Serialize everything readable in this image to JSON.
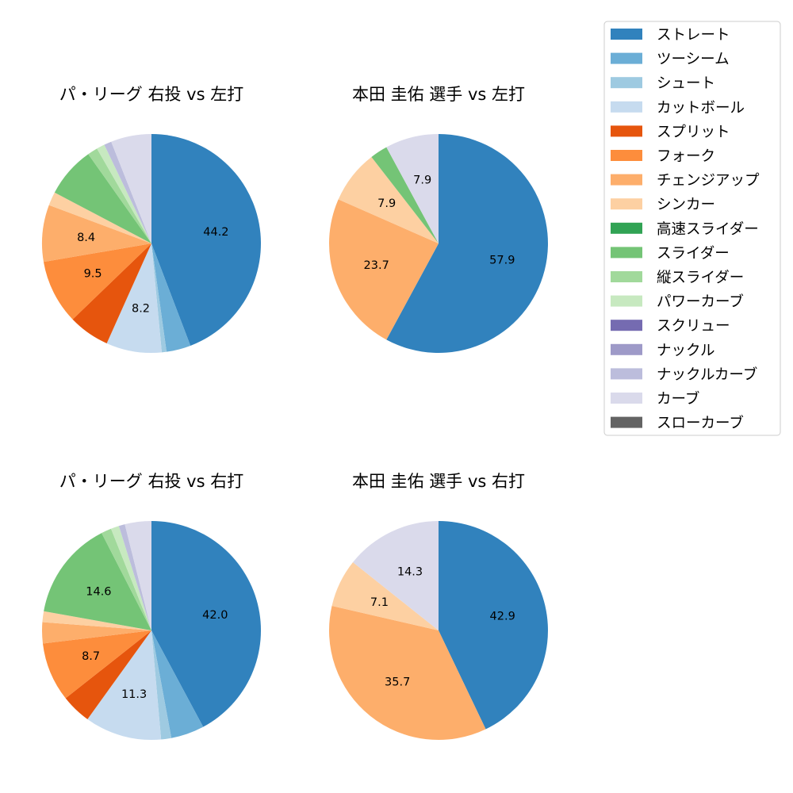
{
  "chart_data": {
    "type": "pie",
    "start_angle": "top",
    "direction": "clockwise",
    "legend": {
      "placement": "top-right",
      "entries": [
        {
          "label": "ストレート",
          "color": "#3182bd"
        },
        {
          "label": "ツーシーム",
          "color": "#6baed6"
        },
        {
          "label": "シュート",
          "color": "#9ecae1"
        },
        {
          "label": "カットボール",
          "color": "#c6dbef"
        },
        {
          "label": "スプリット",
          "color": "#e6550d"
        },
        {
          "label": "フォーク",
          "color": "#fd8d3c"
        },
        {
          "label": "チェンジアップ",
          "color": "#fdae6b"
        },
        {
          "label": "シンカー",
          "color": "#fdd0a2"
        },
        {
          "label": "高速スライダー",
          "color": "#31a354"
        },
        {
          "label": "スライダー",
          "color": "#74c476"
        },
        {
          "label": "縦スライダー",
          "color": "#a1d99b"
        },
        {
          "label": "パワーカーブ",
          "color": "#c7e9c0"
        },
        {
          "label": "スクリュー",
          "color": "#756bb1"
        },
        {
          "label": "ナックル",
          "color": "#9e9ac8"
        },
        {
          "label": "ナックルカーブ",
          "color": "#bcbddc"
        },
        {
          "label": "カーブ",
          "color": "#dadaeb"
        },
        {
          "label": "スローカーブ",
          "color": "#636363"
        }
      ]
    },
    "pies": [
      {
        "title": "パ・リーグ 右投 vs 左打",
        "slices": [
          {
            "label": "ストレート",
            "value": 44.2,
            "display": "44.2"
          },
          {
            "label": "ツーシーム",
            "value": 3.6,
            "display": ""
          },
          {
            "label": "シュート",
            "value": 0.7,
            "display": ""
          },
          {
            "label": "カットボール",
            "value": 8.2,
            "display": "8.2"
          },
          {
            "label": "スプリット",
            "value": 6.1,
            "display": ""
          },
          {
            "label": "フォーク",
            "value": 9.5,
            "display": "9.5"
          },
          {
            "label": "チェンジアップ",
            "value": 8.4,
            "display": "8.4"
          },
          {
            "label": "シンカー",
            "value": 2.0,
            "display": ""
          },
          {
            "label": "スライダー",
            "value": 7.5,
            "display": ""
          },
          {
            "label": "縦スライダー",
            "value": 1.5,
            "display": ""
          },
          {
            "label": "パワーカーブ",
            "value": 1.2,
            "display": ""
          },
          {
            "label": "ナックルカーブ",
            "value": 1.1,
            "display": ""
          },
          {
            "label": "カーブ",
            "value": 6.0,
            "display": ""
          }
        ]
      },
      {
        "title": "本田 圭佑 選手 vs 左打",
        "slices": [
          {
            "label": "ストレート",
            "value": 57.9,
            "display": "57.9"
          },
          {
            "label": "チェンジアップ",
            "value": 23.7,
            "display": "23.7"
          },
          {
            "label": "シンカー",
            "value": 7.9,
            "display": "7.9"
          },
          {
            "label": "スライダー",
            "value": 2.6,
            "display": ""
          },
          {
            "label": "カーブ",
            "value": 7.9,
            "display": "7.9"
          }
        ]
      },
      {
        "title": "パ・リーグ 右投 vs 右打",
        "slices": [
          {
            "label": "ストレート",
            "value": 42.0,
            "display": "42.0"
          },
          {
            "label": "ツーシーム",
            "value": 4.9,
            "display": ""
          },
          {
            "label": "シュート",
            "value": 1.5,
            "display": ""
          },
          {
            "label": "カットボール",
            "value": 11.3,
            "display": "11.3"
          },
          {
            "label": "スプリット",
            "value": 4.4,
            "display": ""
          },
          {
            "label": "フォーク",
            "value": 8.7,
            "display": "8.7"
          },
          {
            "label": "チェンジアップ",
            "value": 3.1,
            "display": ""
          },
          {
            "label": "シンカー",
            "value": 1.6,
            "display": ""
          },
          {
            "label": "スライダー",
            "value": 14.6,
            "display": "14.6"
          },
          {
            "label": "縦スライダー",
            "value": 1.5,
            "display": ""
          },
          {
            "label": "パワーカーブ",
            "value": 1.2,
            "display": ""
          },
          {
            "label": "ナックルカーブ",
            "value": 0.9,
            "display": ""
          },
          {
            "label": "カーブ",
            "value": 3.9,
            "display": ""
          }
        ]
      },
      {
        "title": "本田 圭佑 選手 vs 右打",
        "slices": [
          {
            "label": "ストレート",
            "value": 42.9,
            "display": "42.9"
          },
          {
            "label": "チェンジアップ",
            "value": 35.7,
            "display": "35.7"
          },
          {
            "label": "シンカー",
            "value": 7.1,
            "display": "7.1"
          },
          {
            "label": "カーブ",
            "value": 14.3,
            "display": "14.3"
          }
        ]
      }
    ]
  }
}
